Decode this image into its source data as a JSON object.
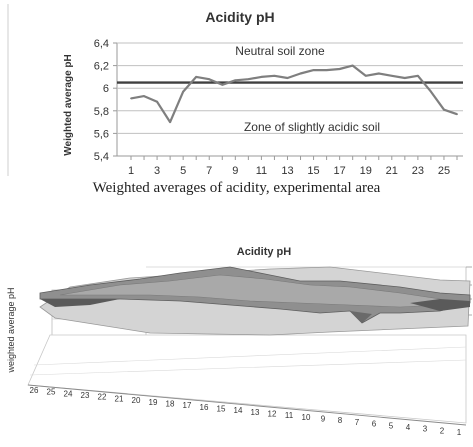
{
  "caption": "Weighted averages of acidity, experimental area",
  "chart_data": [
    {
      "type": "line",
      "title": "Acidity pH",
      "xlabel": "",
      "ylabel": "Weighted average pH",
      "x": [
        1,
        2,
        3,
        4,
        5,
        6,
        7,
        8,
        9,
        10,
        11,
        12,
        13,
        14,
        15,
        16,
        17,
        18,
        19,
        20,
        21,
        22,
        23,
        24,
        25,
        26
      ],
      "x_tick_labels": [
        "1",
        "3",
        "5",
        "7",
        "9",
        "11",
        "13",
        "15",
        "17",
        "19",
        "21",
        "23",
        "25"
      ],
      "y_tick_labels": [
        "5,4",
        "5,6",
        "5,8",
        "6",
        "6,2",
        "6,4"
      ],
      "y_ticks": [
        5.4,
        5.6,
        5.8,
        6.0,
        6.2,
        6.4
      ],
      "ylim": [
        5.4,
        6.4
      ],
      "grid": true,
      "series": [
        {
          "values": [
            5.91,
            5.93,
            5.88,
            5.7,
            5.97,
            6.1,
            6.08,
            6.03,
            6.07,
            6.08,
            6.1,
            6.11,
            6.09,
            6.13,
            6.16,
            6.16,
            6.17,
            6.2,
            6.11,
            6.13,
            6.11,
            6.09,
            6.11,
            5.97,
            5.81,
            5.77
          ],
          "color": "#7f7f7f"
        }
      ],
      "reference_line": {
        "value": 6.05,
        "color": "#404040"
      },
      "annotations": [
        "Neutral soil zone",
        "Zone of slightly acidic soil"
      ]
    },
    {
      "type": "surface",
      "title": "Acidity pH",
      "zlabel": "weighted average pH",
      "x_tick_labels": [
        "26",
        "25",
        "24",
        "23",
        "22",
        "21",
        "20",
        "19",
        "18",
        "17",
        "16",
        "15",
        "14",
        "13",
        "12",
        "11",
        "10",
        "9",
        "8",
        "7",
        "6",
        "5",
        "4",
        "3",
        "2",
        "1"
      ]
    }
  ]
}
